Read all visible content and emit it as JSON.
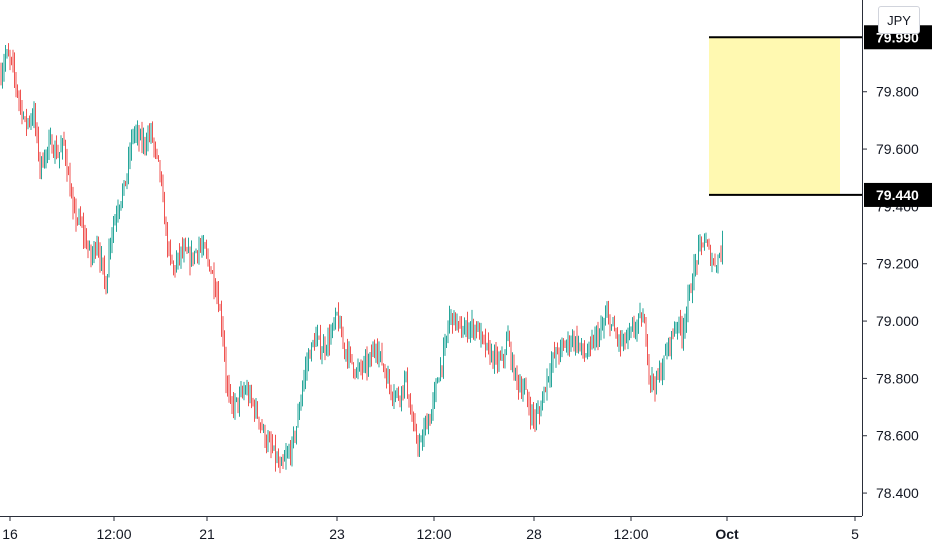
{
  "currency": "JPY",
  "colors": {
    "up": "#26a69a",
    "down": "#ef5350",
    "zone": "#fff9b1",
    "level_tag": "#000000",
    "axis_text": "#131722"
  },
  "chart_data": {
    "type": "candlestick",
    "ylim": [
      78.32,
      80.12
    ],
    "y_ticks": [
      "79.800",
      "79.600",
      "79.200",
      "79.000",
      "78.800",
      "78.600",
      "78.400"
    ],
    "y_tick_values": [
      79.8,
      79.6,
      79.2,
      79.0,
      78.8,
      78.6,
      78.4
    ],
    "partial_tick": {
      "label": "79.400",
      "value": 79.4
    },
    "x_ticks": [
      "16",
      "12:00",
      "21",
      "23",
      "12:00",
      "28",
      "12:00",
      "Oct",
      "5"
    ],
    "x_tick_bold": [
      false,
      false,
      false,
      false,
      false,
      false,
      false,
      true,
      false
    ],
    "levels": [
      {
        "label": "79.990",
        "value": 79.99
      },
      {
        "label": "79.440",
        "value": 79.44
      }
    ],
    "zone": {
      "top": 79.99,
      "bottom": 79.44
    },
    "close_points": [
      [
        0,
        79.86
      ],
      [
        3,
        79.93
      ],
      [
        7,
        79.9
      ],
      [
        11,
        79.8
      ],
      [
        16,
        79.69
      ],
      [
        22,
        79.72
      ],
      [
        26,
        79.54
      ],
      [
        33,
        79.62
      ],
      [
        38,
        79.58
      ],
      [
        42,
        79.62
      ],
      [
        48,
        79.38
      ],
      [
        53,
        79.34
      ],
      [
        60,
        79.22
      ],
      [
        64,
        79.28
      ],
      [
        70,
        79.12
      ],
      [
        73,
        79.3
      ],
      [
        78,
        79.4
      ],
      [
        83,
        79.48
      ],
      [
        88,
        79.66
      ],
      [
        95,
        79.62
      ],
      [
        100,
        79.66
      ],
      [
        103,
        79.58
      ],
      [
        106,
        79.52
      ],
      [
        108,
        79.4
      ],
      [
        112,
        79.23
      ],
      [
        115,
        79.18
      ],
      [
        120,
        79.24
      ],
      [
        127,
        79.22
      ],
      [
        132,
        79.26
      ],
      [
        136,
        79.24
      ],
      [
        140,
        79.18
      ],
      [
        144,
        79.1
      ],
      [
        148,
        78.96
      ],
      [
        150,
        78.8
      ],
      [
        153,
        78.7
      ],
      [
        158,
        78.72
      ],
      [
        163,
        78.76
      ],
      [
        167,
        78.72
      ],
      [
        172,
        78.66
      ],
      [
        177,
        78.58
      ],
      [
        182,
        78.54
      ],
      [
        186,
        78.48
      ],
      [
        190,
        78.52
      ],
      [
        194,
        78.56
      ],
      [
        198,
        78.66
      ],
      [
        201,
        78.78
      ],
      [
        205,
        78.88
      ],
      [
        210,
        78.94
      ],
      [
        214,
        78.9
      ],
      [
        220,
        78.95
      ],
      [
        224,
        79.02
      ],
      [
        228,
        78.92
      ],
      [
        232,
        78.88
      ],
      [
        237,
        78.82
      ],
      [
        241,
        78.84
      ],
      [
        245,
        78.85
      ],
      [
        250,
        78.92
      ],
      [
        255,
        78.84
      ],
      [
        260,
        78.76
      ],
      [
        265,
        78.74
      ],
      [
        270,
        78.8
      ],
      [
        273,
        78.68
      ],
      [
        276,
        78.6
      ],
      [
        280,
        78.56
      ],
      [
        283,
        78.64
      ],
      [
        286,
        78.66
      ],
      [
        289,
        78.74
      ],
      [
        292,
        78.82
      ],
      [
        296,
        78.9
      ],
      [
        299,
        79.02
      ],
      [
        303,
        79.0
      ],
      [
        307,
        78.96
      ],
      [
        312,
        78.98
      ],
      [
        317,
        78.98
      ],
      [
        320,
        78.94
      ],
      [
        324,
        78.9
      ],
      [
        330,
        78.86
      ],
      [
        334,
        78.86
      ],
      [
        338,
        78.94
      ],
      [
        341,
        78.84
      ],
      [
        345,
        78.78
      ],
      [
        349,
        78.76
      ],
      [
        352,
        78.7
      ],
      [
        355,
        78.66
      ],
      [
        359,
        78.68
      ],
      [
        362,
        78.76
      ],
      [
        365,
        78.82
      ],
      [
        369,
        78.88
      ],
      [
        373,
        78.9
      ],
      [
        377,
        78.92
      ],
      [
        381,
        78.94
      ],
      [
        385,
        78.92
      ],
      [
        389,
        78.88
      ],
      [
        393,
        78.9
      ],
      [
        396,
        78.94
      ],
      [
        400,
        78.96
      ],
      [
        404,
        79.02
      ],
      [
        409,
        78.96
      ],
      [
        413,
        78.92
      ],
      [
        418,
        78.94
      ],
      [
        423,
        78.98
      ],
      [
        427,
        79.01
      ],
      [
        430,
        78.96
      ],
      [
        432,
        78.82
      ],
      [
        435,
        78.78
      ],
      [
        438,
        78.8
      ],
      [
        441,
        78.84
      ],
      [
        444,
        78.9
      ],
      [
        448,
        78.96
      ],
      [
        451,
        79.0
      ],
      [
        454,
        78.96
      ],
      [
        457,
        79.04
      ],
      [
        460,
        79.12
      ],
      [
        463,
        79.2
      ],
      [
        466,
        79.26
      ],
      [
        469,
        79.28
      ],
      [
        472,
        79.24
      ],
      [
        475,
        79.2
      ],
      [
        478,
        79.22
      ],
      [
        481,
        79.26
      ]
    ]
  }
}
